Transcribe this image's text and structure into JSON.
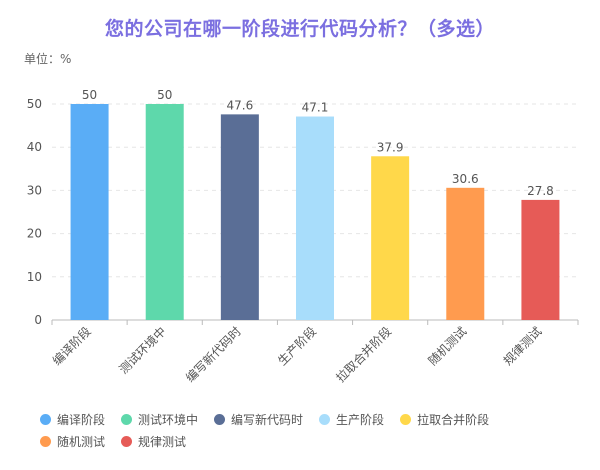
{
  "chart_data": {
    "type": "bar",
    "title": "您的公司在哪一阶段进行代码分析？（多选）",
    "unit_label": "单位：%",
    "categories": [
      "编译阶段",
      "测试环境中",
      "编写新代码时",
      "生产阶段",
      "拉取合并阶段",
      "随机测试",
      "规律测试"
    ],
    "values": [
      50,
      50,
      47.6,
      47.1,
      37.9,
      30.6,
      27.8
    ],
    "value_labels": [
      "50",
      "50",
      "47.6",
      "47.1",
      "37.9",
      "30.6",
      "27.8"
    ],
    "colors": [
      "#5aadf6",
      "#5ed8ab",
      "#5a6e96",
      "#a8ddfb",
      "#ffd84a",
      "#ff9b4f",
      "#e65b57"
    ],
    "ylim": [
      0,
      50
    ],
    "yticks": [
      "0",
      "10",
      "20",
      "30",
      "40",
      "50"
    ],
    "grid": true,
    "legend_position": "bottom"
  }
}
